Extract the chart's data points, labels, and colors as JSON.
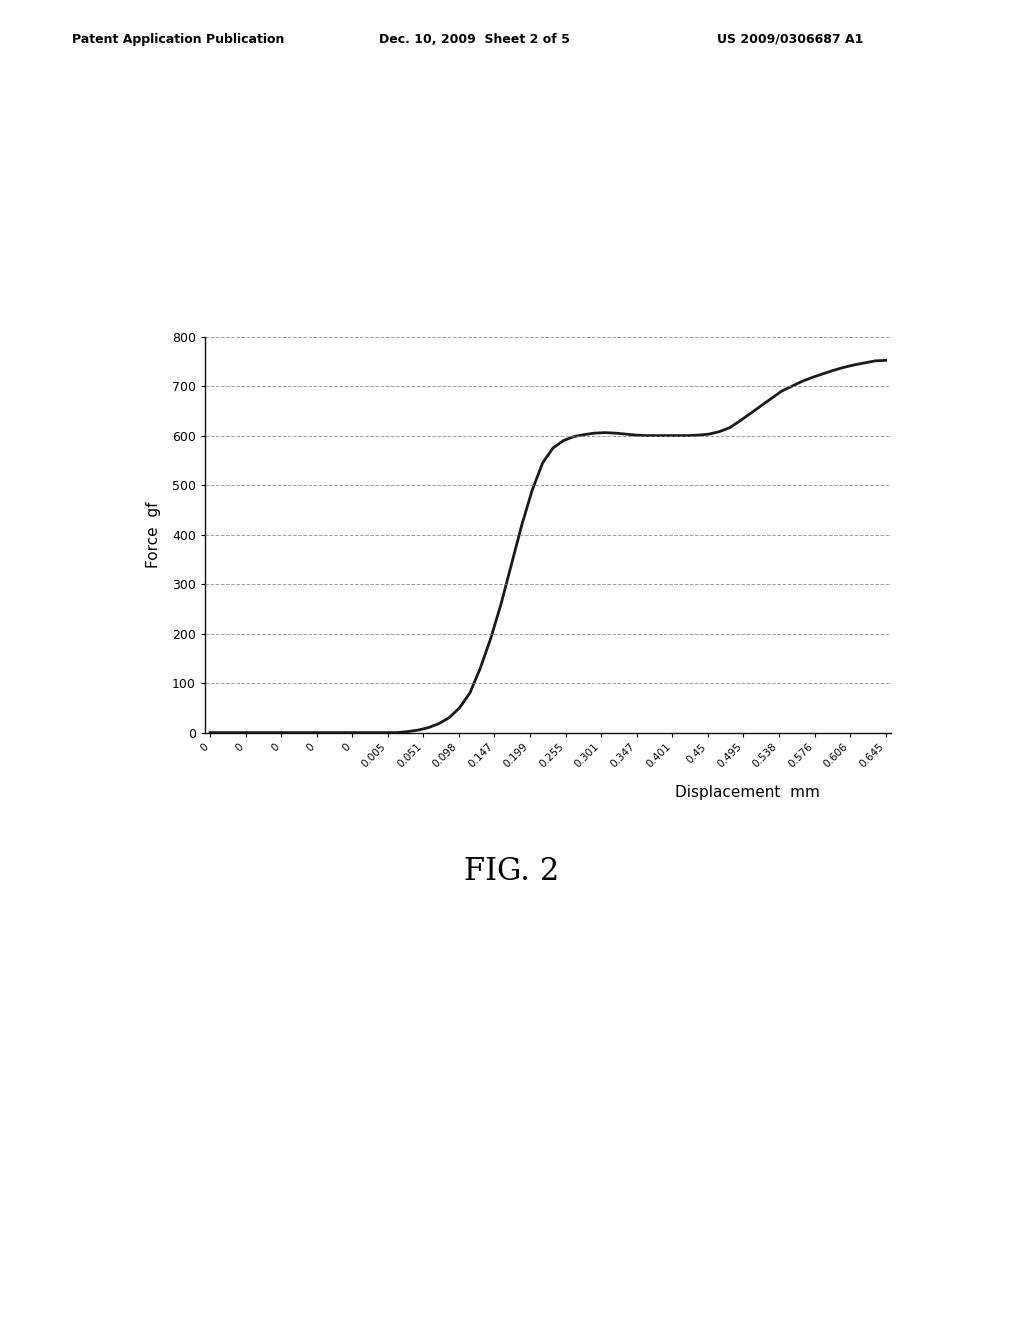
{
  "title": "FIG. 2",
  "ylabel": "Force  gf",
  "xlabel": "Displacement  mm",
  "header_left": "Patent Application Publication",
  "header_mid": "Dec. 10, 2009  Sheet 2 of 5",
  "header_right": "US 2009/0306687 A1",
  "ylim": [
    0,
    800
  ],
  "yticks": [
    0,
    100,
    200,
    300,
    400,
    500,
    600,
    700,
    800
  ],
  "xtick_labels": [
    "0",
    "0",
    "0",
    "0",
    "0",
    "0.005",
    "0.051",
    "0.098",
    "0.147",
    "0.199",
    "0.255",
    "0.301",
    "0.347",
    "0.401",
    "0.45",
    "0.495",
    "0.538",
    "0.576",
    "0.606",
    "0.645"
  ],
  "x_data_indices": [
    0,
    1,
    2,
    3,
    4,
    5,
    6,
    7,
    8,
    9,
    10,
    11,
    12,
    13,
    14,
    15,
    16,
    17,
    18,
    19,
    20,
    21,
    22,
    23,
    24,
    25,
    26,
    27,
    28,
    29,
    30,
    31,
    32,
    33,
    34,
    35,
    36,
    37,
    38,
    39,
    40,
    41,
    42,
    43,
    44,
    45,
    46,
    47,
    48,
    49,
    50,
    51,
    52,
    53,
    54,
    55,
    56,
    57,
    58,
    59,
    60,
    61,
    62,
    63,
    64,
    65
  ],
  "y_data": [
    0,
    0,
    0,
    0,
    0,
    0,
    0,
    0,
    0,
    0,
    0,
    0,
    0,
    0,
    0,
    0,
    0,
    0,
    0,
    2,
    5,
    10,
    18,
    30,
    50,
    80,
    130,
    190,
    260,
    340,
    420,
    490,
    545,
    575,
    590,
    598,
    602,
    605,
    606,
    605,
    603,
    601,
    600,
    600,
    600,
    600,
    600,
    601,
    603,
    608,
    616,
    630,
    645,
    660,
    675,
    690,
    700,
    710,
    718,
    725,
    732,
    738,
    743,
    747,
    751,
    752
  ],
  "line_color": "#1a1a1a",
  "line_width": 2.0,
  "bg_color": "#ffffff",
  "grid_color": "#888888",
  "axis_color": "#111111"
}
